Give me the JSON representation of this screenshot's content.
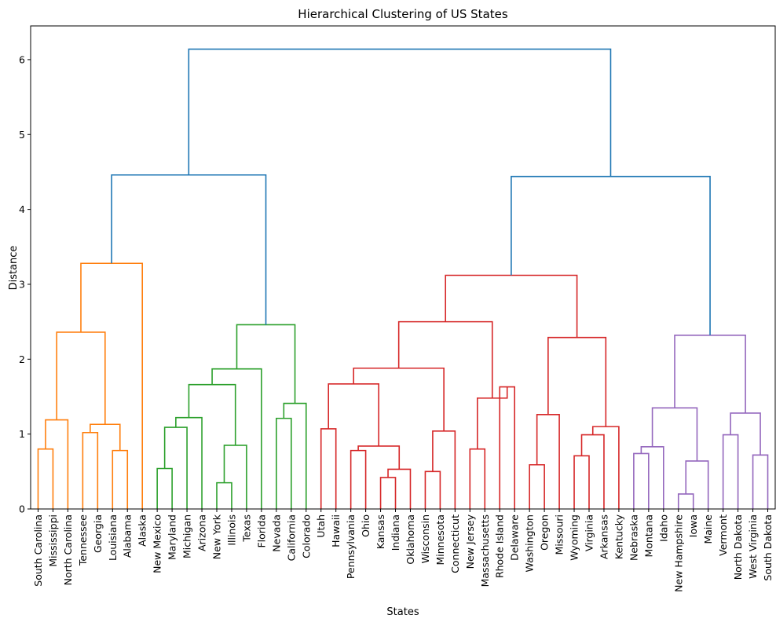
{
  "chart_data": {
    "type": "dendrogram",
    "title": "Hierarchical Clustering of US States",
    "xlabel": "States",
    "ylabel": "Distance",
    "ylim": [
      0,
      6.45
    ],
    "yticks": [
      0,
      1,
      2,
      3,
      4,
      5,
      6
    ],
    "grid": false,
    "leaves": [
      "South Carolina",
      "Mississippi",
      "North Carolina",
      "Tennessee",
      "Georgia",
      "Louisiana",
      "Alabama",
      "Alaska",
      "New Mexico",
      "Maryland",
      "Michigan",
      "Arizona",
      "New York",
      "Illinois",
      "Texas",
      "Florida",
      "Nevada",
      "California",
      "Colorado",
      "Utah",
      "Hawaii",
      "Pennsylvania",
      "Ohio",
      "Kansas",
      "Indiana",
      "Oklahoma",
      "Wisconsin",
      "Minnesota",
      "Connecticut",
      "New Jersey",
      "Massachusetts",
      "Rhode Island",
      "Delaware",
      "Washington",
      "Oregon",
      "Missouri",
      "Wyoming",
      "Virginia",
      "Arkansas",
      "Kentucky",
      "Nebraska",
      "Montana",
      "Idaho",
      "New Hampshire",
      "Iowa",
      "Maine",
      "Vermont",
      "North Dakota",
      "West Virginia",
      "South Dakota"
    ],
    "cluster_colors": [
      "#ff7f0e",
      "#2ca02c",
      "#d62728",
      "#9467bd"
    ],
    "above_threshold_color": "#1f77b4",
    "links": [
      {
        "left": 0,
        "right": 1,
        "height": 0.8,
        "color": 0
      },
      {
        "left": "L0",
        "right": 2,
        "height": 1.19,
        "color": 0
      },
      {
        "left": 3,
        "right": 4,
        "height": 1.02,
        "color": 0
      },
      {
        "left": 5,
        "right": 6,
        "height": 0.78,
        "color": 0
      },
      {
        "left": "L2",
        "right": "L3",
        "height": 1.13,
        "color": 0
      },
      {
        "left": "L1",
        "right": "L4",
        "height": 2.36,
        "color": 0
      },
      {
        "left": "L5",
        "right": 7,
        "height": 3.28,
        "color": 0
      },
      {
        "left": 8,
        "right": 9,
        "height": 0.54,
        "color": 1
      },
      {
        "left": "L7",
        "right": 10,
        "height": 1.09,
        "color": 1
      },
      {
        "left": "L8",
        "right": 11,
        "height": 1.22,
        "color": 1
      },
      {
        "left": 12,
        "right": 13,
        "height": 0.35,
        "color": 1
      },
      {
        "left": "L10",
        "right": 14,
        "height": 0.85,
        "color": 1
      },
      {
        "left": "L9",
        "right": "L11",
        "height": 1.66,
        "color": 1
      },
      {
        "left": "L12",
        "right": 15,
        "height": 1.87,
        "color": 1
      },
      {
        "left": 16,
        "right": 17,
        "height": 1.21,
        "color": 1
      },
      {
        "left": "L14",
        "right": 18,
        "height": 1.41,
        "color": 1
      },
      {
        "left": "L13",
        "right": "L15",
        "height": 2.46,
        "color": 1
      },
      {
        "left": "L6",
        "right": "L16",
        "height": 4.46,
        "color": "above"
      },
      {
        "left": 19,
        "right": 20,
        "height": 1.07,
        "color": 2
      },
      {
        "left": 21,
        "right": 22,
        "height": 0.78,
        "color": 2
      },
      {
        "left": 23,
        "right": 24,
        "height": 0.42,
        "color": 2
      },
      {
        "left": "L20",
        "right": 25,
        "height": 0.53,
        "color": 2
      },
      {
        "left": "L19",
        "right": "L21",
        "height": 0.84,
        "color": 2
      },
      {
        "left": "L18",
        "right": "L22",
        "height": 1.67,
        "color": 2
      },
      {
        "left": 26,
        "right": 27,
        "height": 0.5,
        "color": 2
      },
      {
        "left": "L24",
        "right": 28,
        "height": 1.04,
        "color": 2
      },
      {
        "left": "L23",
        "right": "L25",
        "height": 1.88,
        "color": 2
      },
      {
        "left": 29,
        "right": 30,
        "height": 0.8,
        "color": 2
      },
      {
        "left": 31,
        "right": 32,
        "height": 1.63,
        "color": 2
      },
      {
        "left": "L27",
        "right": "L28",
        "height": 1.48,
        "color": 2
      },
      {
        "left": "L26",
        "right": "L29",
        "height": 2.5,
        "color": 2
      },
      {
        "left": 33,
        "right": 34,
        "height": 0.59,
        "color": 2
      },
      {
        "left": "L31",
        "right": 35,
        "height": 1.26,
        "color": 2
      },
      {
        "left": 36,
        "right": 37,
        "height": 0.71,
        "color": 2
      },
      {
        "left": "L33",
        "right": 38,
        "height": 0.99,
        "color": 2
      },
      {
        "left": "L34",
        "right": 39,
        "height": 1.1,
        "color": 2
      },
      {
        "left": "L32",
        "right": "L35",
        "height": 2.29,
        "color": 2
      },
      {
        "left": "L30",
        "right": "L36",
        "height": 3.12,
        "color": 2
      },
      {
        "left": 40,
        "right": 41,
        "height": 0.74,
        "color": 3
      },
      {
        "left": "L38",
        "right": 42,
        "height": 0.83,
        "color": 3
      },
      {
        "left": 43,
        "right": 44,
        "height": 0.2,
        "color": 3
      },
      {
        "left": "L40",
        "right": 45,
        "height": 0.64,
        "color": 3
      },
      {
        "left": "L39",
        "right": "L41",
        "height": 1.35,
        "color": 3
      },
      {
        "left": 46,
        "right": 47,
        "height": 0.99,
        "color": 3
      },
      {
        "left": 48,
        "right": 49,
        "height": 0.72,
        "color": 3
      },
      {
        "left": "L43",
        "right": "L44",
        "height": 1.28,
        "color": 3
      },
      {
        "left": "L42",
        "right": "L45",
        "height": 2.32,
        "color": 3
      },
      {
        "left": "L37",
        "right": "L46",
        "height": 4.44,
        "color": "above"
      },
      {
        "left": "L17",
        "right": "L47",
        "height": 6.14,
        "color": "above"
      }
    ]
  }
}
